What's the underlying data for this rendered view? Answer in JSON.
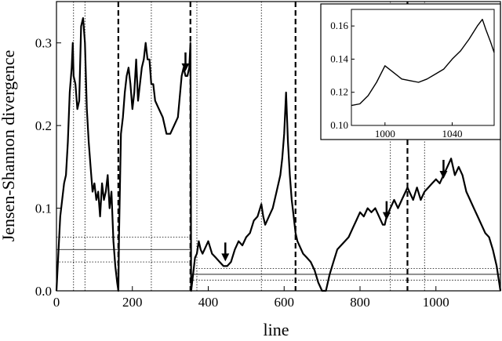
{
  "chart_data": [
    {
      "type": "line",
      "title": "",
      "xlabel": "line",
      "ylabel": "Jensen-Shannon divergence",
      "xlim": [
        0,
        1170
      ],
      "ylim": [
        0,
        0.35
      ],
      "grid": false,
      "x_ticks": [
        0,
        200,
        400,
        600,
        800,
        1000
      ],
      "y_ticks": [
        0.0,
        0.1,
        0.2,
        0.3
      ],
      "x_tick_labels": [
        "0",
        "200",
        "400",
        "600",
        "800",
        "1000"
      ],
      "y_tick_labels": [
        "0.0",
        "0.1",
        "0.2",
        "0.3"
      ],
      "segment_boundaries_dashed": [
        163,
        353,
        630,
        925
      ],
      "minor_boundaries_dotted": [
        45,
        75,
        250,
        370,
        540,
        880,
        970
      ],
      "series": [
        {
          "x": [
            0,
            10,
            20,
            25,
            30,
            35,
            40,
            43,
            45,
            50,
            55,
            60,
            65,
            70,
            75,
            80,
            85,
            90,
            95,
            100,
            105,
            110,
            115,
            120,
            125,
            130,
            135,
            140,
            145,
            150,
            155,
            160,
            163,
            165,
            170,
            175,
            180,
            185,
            190,
            195,
            200,
            205,
            210,
            215,
            220,
            225,
            230,
            235,
            240,
            245,
            250,
            255,
            260,
            270,
            280,
            290,
            300,
            310,
            320,
            330,
            335,
            340,
            345,
            350,
            353,
            355,
            360,
            365,
            370,
            375,
            380,
            385,
            390,
            400,
            410,
            420,
            430,
            440,
            450,
            460,
            470,
            480,
            490,
            500,
            510,
            520,
            530,
            540,
            545,
            550,
            555,
            560,
            570,
            580,
            590,
            595,
            600,
            605,
            610,
            615,
            620,
            625,
            630,
            635,
            640,
            650,
            660,
            670,
            680,
            690,
            700,
            710,
            715,
            720,
            730,
            740,
            750,
            760,
            770,
            780,
            790,
            800,
            810,
            820,
            830,
            840,
            850,
            860,
            865,
            870,
            880,
            890,
            900,
            910,
            920,
            925,
            930,
            940,
            950,
            960,
            970,
            980,
            990,
            1000,
            1010,
            1020,
            1030,
            1040,
            1050,
            1060,
            1070,
            1080,
            1090,
            1100,
            1110,
            1120,
            1130,
            1140,
            1150,
            1160,
            1165,
            1170
          ],
          "y": [
            0.0,
            0.09,
            0.13,
            0.14,
            0.18,
            0.24,
            0.27,
            0.3,
            0.26,
            0.25,
            0.22,
            0.23,
            0.32,
            0.33,
            0.3,
            0.22,
            0.18,
            0.15,
            0.12,
            0.13,
            0.11,
            0.12,
            0.09,
            0.13,
            0.11,
            0.12,
            0.14,
            0.1,
            0.12,
            0.06,
            0.03,
            0.01,
            0.0,
            0.07,
            0.19,
            0.21,
            0.24,
            0.26,
            0.27,
            0.25,
            0.22,
            0.24,
            0.28,
            0.23,
            0.25,
            0.27,
            0.28,
            0.3,
            0.28,
            0.28,
            0.25,
            0.25,
            0.23,
            0.22,
            0.21,
            0.19,
            0.19,
            0.2,
            0.21,
            0.26,
            0.27,
            0.26,
            0.26,
            0.27,
            0.3,
            0.0,
            0.02,
            0.04,
            0.045,
            0.06,
            0.05,
            0.045,
            0.05,
            0.06,
            0.045,
            0.04,
            0.035,
            0.03,
            0.03,
            0.035,
            0.05,
            0.06,
            0.055,
            0.065,
            0.07,
            0.085,
            0.09,
            0.105,
            0.09,
            0.08,
            0.085,
            0.09,
            0.1,
            0.12,
            0.14,
            0.16,
            0.19,
            0.24,
            0.18,
            0.14,
            0.11,
            0.09,
            0.07,
            0.06,
            0.055,
            0.045,
            0.04,
            0.035,
            0.025,
            0.01,
            0.0,
            0.0,
            0.01,
            0.02,
            0.035,
            0.05,
            0.055,
            0.06,
            0.065,
            0.075,
            0.085,
            0.095,
            0.09,
            0.1,
            0.095,
            0.1,
            0.09,
            0.08,
            0.08,
            0.09,
            0.1,
            0.11,
            0.1,
            0.11,
            0.12,
            0.125,
            0.12,
            0.11,
            0.125,
            0.11,
            0.12,
            0.125,
            0.13,
            0.135,
            0.13,
            0.14,
            0.15,
            0.16,
            0.14,
            0.15,
            0.14,
            0.12,
            0.11,
            0.1,
            0.09,
            0.08,
            0.07,
            0.065,
            0.05,
            0.03,
            0.015,
            0.0
          ]
        }
      ],
      "arrows_at": [
        {
          "x": 340,
          "y": 0.26
        },
        {
          "x": 445,
          "y": 0.03
        },
        {
          "x": 870,
          "y": 0.08
        },
        {
          "x": 1020,
          "y": 0.13
        }
      ],
      "threshold_lines": [
        {
          "x_range": [
            0,
            163
          ],
          "y": 0.05,
          "style": "solid"
        },
        {
          "x_range": [
            0,
            163
          ],
          "y": 0.065,
          "style": "dotted"
        },
        {
          "x_range": [
            0,
            163
          ],
          "y": 0.035,
          "style": "dotted"
        },
        {
          "x_range": [
            163,
            353
          ],
          "y": 0.05,
          "style": "solid"
        },
        {
          "x_range": [
            163,
            353
          ],
          "y": 0.065,
          "style": "dotted"
        },
        {
          "x_range": [
            163,
            353
          ],
          "y": 0.035,
          "style": "dotted"
        },
        {
          "x_range": [
            353,
            630
          ],
          "y": 0.02,
          "style": "solid"
        },
        {
          "x_range": [
            353,
            630
          ],
          "y": 0.027,
          "style": "dotted"
        },
        {
          "x_range": [
            353,
            630
          ],
          "y": 0.013,
          "style": "dotted"
        },
        {
          "x_range": [
            630,
            1170
          ],
          "y": 0.02,
          "style": "solid"
        },
        {
          "x_range": [
            630,
            1170
          ],
          "y": 0.027,
          "style": "dotted"
        },
        {
          "x_range": [
            630,
            1170
          ],
          "y": 0.013,
          "style": "dotted"
        }
      ]
    },
    {
      "type": "line",
      "title": "",
      "xlabel": "",
      "ylabel": "",
      "xlim": [
        980,
        1065
      ],
      "ylim": [
        0.1,
        0.17
      ],
      "x_ticks": [
        1000,
        1040
      ],
      "y_ticks": [
        0.1,
        0.12,
        0.14,
        0.16
      ],
      "x_tick_labels": [
        "1000",
        "1040"
      ],
      "y_tick_labels": [
        "0.10",
        "0.12",
        "0.14",
        "0.16"
      ],
      "series": [
        {
          "x": [
            980,
            985,
            990,
            995,
            1000,
            1005,
            1010,
            1015,
            1020,
            1025,
            1030,
            1035,
            1040,
            1045,
            1050,
            1055,
            1058,
            1060,
            1063,
            1065
          ],
          "y": [
            0.112,
            0.113,
            0.118,
            0.126,
            0.136,
            0.132,
            0.128,
            0.127,
            0.126,
            0.128,
            0.131,
            0.134,
            0.14,
            0.145,
            0.152,
            0.16,
            0.164,
            0.158,
            0.15,
            0.144
          ]
        }
      ]
    }
  ]
}
